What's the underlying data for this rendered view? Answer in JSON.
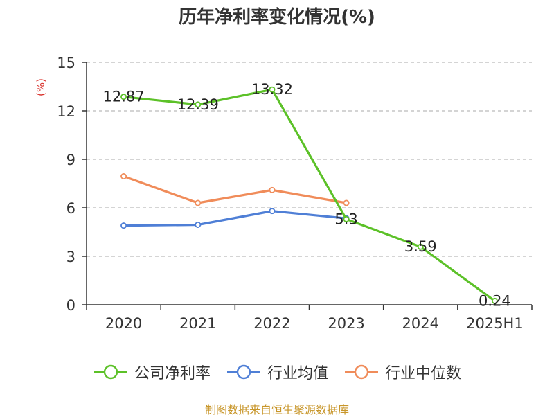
{
  "chart_data": {
    "type": "line",
    "title": "历年净利率变化情况(%)",
    "ylabel": "(%)",
    "xlabel": "",
    "categories": [
      "2020",
      "2021",
      "2022",
      "2023",
      "2024",
      "2025H1"
    ],
    "ylim": [
      0,
      15
    ],
    "yticks": [
      0,
      3,
      6,
      9,
      12,
      15
    ],
    "grid": true,
    "legend_position": "bottom",
    "series": [
      {
        "name": "公司净利率",
        "color": "#5cc128",
        "values": [
          12.87,
          12.39,
          13.32,
          5.3,
          3.59,
          0.24
        ],
        "labels": [
          "12.87",
          "12.39",
          "13.32",
          "5.3",
          "3.59",
          "0.24"
        ]
      },
      {
        "name": "行业均值",
        "color": "#4f7fd6",
        "values": [
          4.9,
          4.95,
          5.8,
          5.35,
          null,
          null
        ]
      },
      {
        "name": "行业中位数",
        "color": "#f08c5a",
        "values": [
          7.95,
          6.3,
          7.1,
          6.3,
          null,
          null
        ]
      }
    ]
  },
  "source_note": "制图数据来自恒生聚源数据库",
  "colors": {
    "axis": "#333333",
    "grid": "#bbbbbb",
    "ylabel": "#d9312b",
    "source": "#c8962a"
  }
}
